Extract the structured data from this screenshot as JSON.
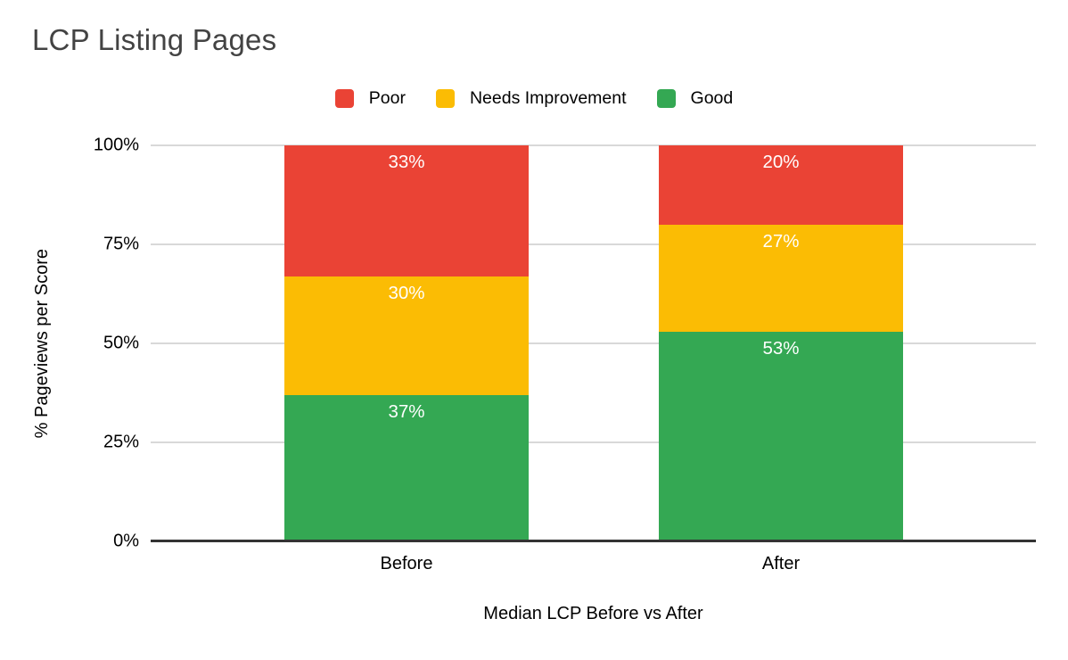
{
  "title": "LCP Listing Pages",
  "legend": [
    {
      "label": "Poor",
      "color": "#EA4335"
    },
    {
      "label": "Needs Improvement",
      "color": "#FBBC04"
    },
    {
      "label": "Good",
      "color": "#34A853"
    }
  ],
  "y_axis": {
    "title": "% Pageviews per Score",
    "ticks": [
      "100%",
      "75%",
      "50%",
      "25%",
      "0%"
    ]
  },
  "x_axis": {
    "title": "Median LCP Before vs After",
    "categories": [
      "Before",
      "After"
    ]
  },
  "chart_data": {
    "type": "bar",
    "subtype": "stacked-100-percent",
    "title": "LCP Listing Pages",
    "categories": [
      "Before",
      "After"
    ],
    "series": [
      {
        "name": "Good",
        "color": "#34A853",
        "values": [
          37,
          53
        ],
        "labels": [
          "37%",
          "53%"
        ]
      },
      {
        "name": "Needs Improvement",
        "color": "#FBBC04",
        "values": [
          30,
          27
        ],
        "labels": [
          "30%",
          "27%"
        ]
      },
      {
        "name": "Poor",
        "color": "#EA4335",
        "values": [
          33,
          20
        ],
        "labels": [
          "33%",
          "20%"
        ]
      }
    ],
    "xlabel": "Median LCP Before vs After",
    "ylabel": "% Pageviews per Score",
    "ylim": [
      0,
      100
    ],
    "grid": true,
    "legend_position": "top",
    "data_label_color": "#ffffff"
  },
  "colors": {
    "gridline": "#d9d9d9",
    "axis_line": "#333333",
    "title_text": "#434343"
  }
}
